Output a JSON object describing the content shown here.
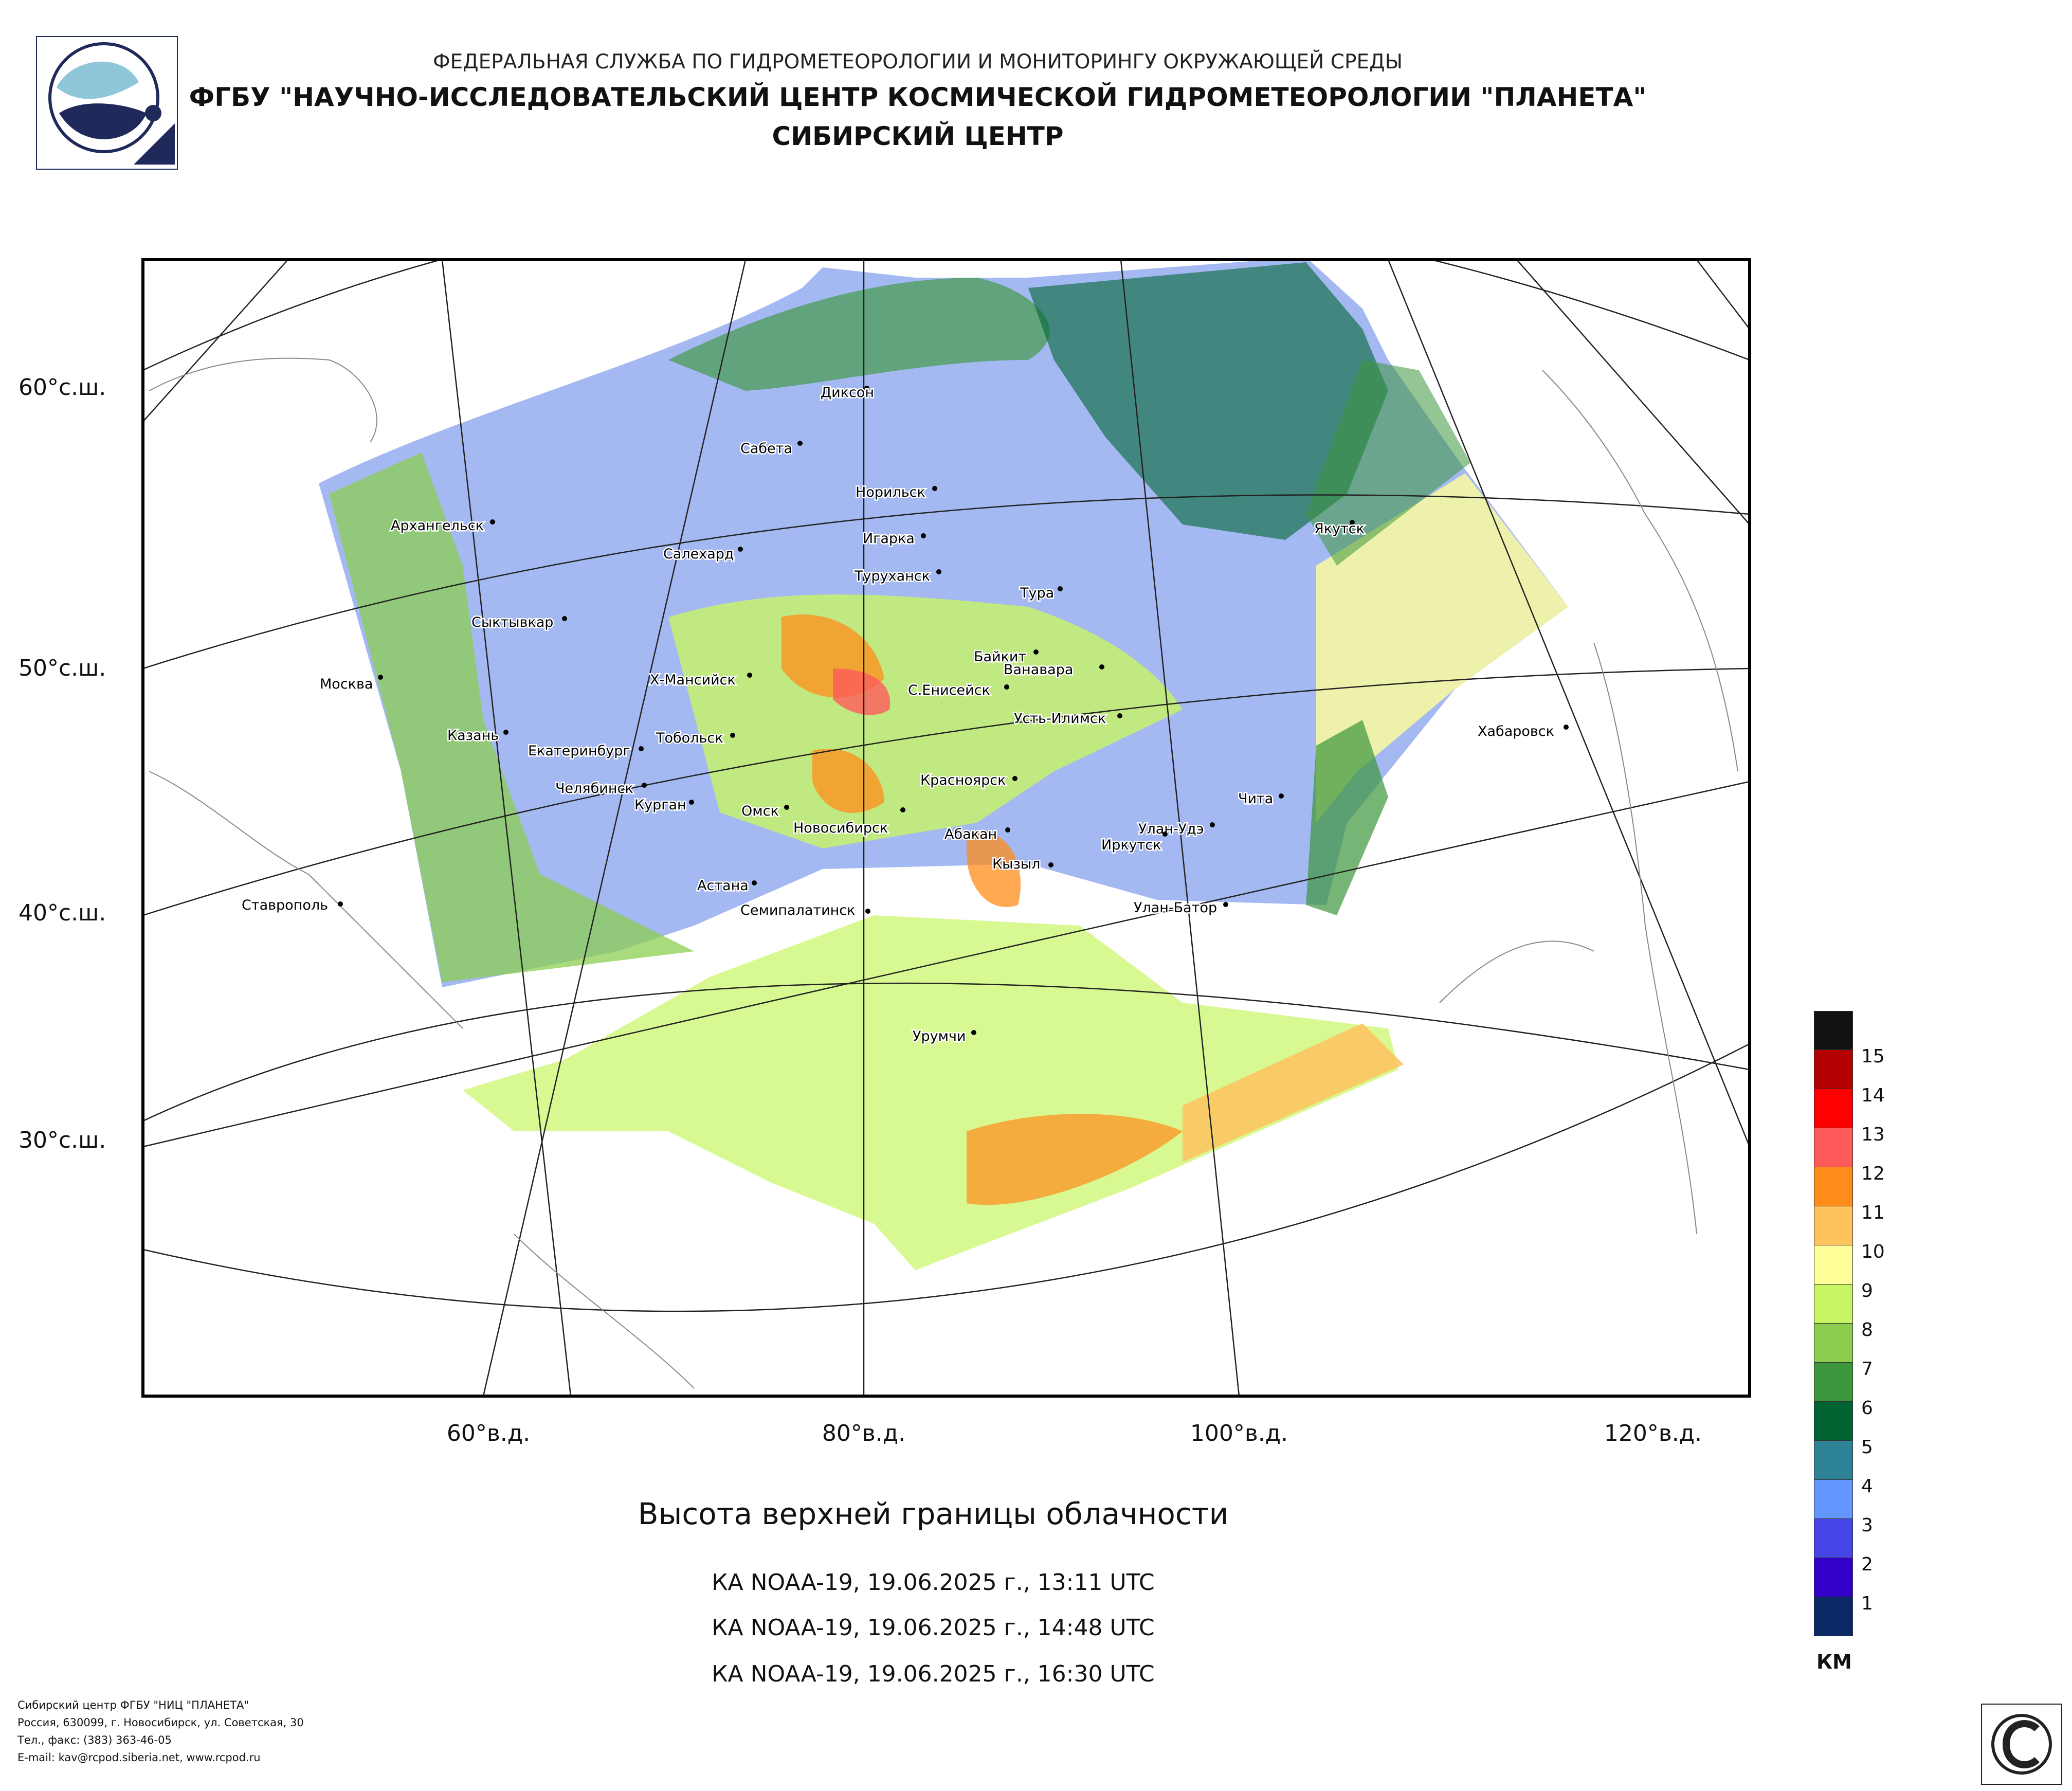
{
  "header": {
    "line1": "ФЕДЕРАЛЬНАЯ СЛУЖБА ПО ГИДРОМЕТЕОРОЛОГИИ И МОНИТОРИНГУ ОКРУЖАЮЩЕЙ СРЕДЫ",
    "line2": "ФГБУ \"НАУЧНО-ИССЛЕДОВАТЕЛЬСКИЙ ЦЕНТР КОСМИЧЕСКОЙ ГИДРОМЕТЕОРОЛОГИИ \"ПЛАНЕТА\"",
    "line3": "СИБИРСКИЙ ЦЕНТР"
  },
  "map": {
    "lat_labels": [
      "60°с.ш.",
      "50°с.ш.",
      "40°с.ш.",
      "30°с.ш."
    ],
    "lon_labels": [
      "60°в.д.",
      "80°в.д.",
      "100°в.д.",
      "120°в.д."
    ],
    "cities": [
      "Диксон",
      "Сабета",
      "Норильск",
      "Игарка",
      "Архангельск",
      "Салехард",
      "Туруханск",
      "Тура",
      "Якутск",
      "Сыктывкар",
      "Байкит",
      "Ванавара",
      "Москва",
      "Х-Мансийск",
      "С.Енисейск",
      "Усть-Илимск",
      "Хабаровск",
      "Казань",
      "Тобольск",
      "Екатеринбург",
      "Красноярск",
      "Челябинск",
      "Курган",
      "Чита",
      "Омск",
      "Новосибирск",
      "Улан-Удэ",
      "Абакан",
      "Иркутск",
      "Кызыл",
      "Астана",
      "Ставрополь",
      "Семипалатинск",
      "Улан-Батор",
      "Урумчи"
    ]
  },
  "title": "Высота верхней границы облачности",
  "passes": [
    "КА NOAA-19, 19.06.2025 г., 13:11 UTC",
    "КА NOAA-19, 19.06.2025 г., 14:48 UTC",
    "КА NOAA-19, 19.06.2025 г., 16:30 UTC"
  ],
  "legend": {
    "labels": [
      "15",
      "14",
      "13",
      "12",
      "11",
      "10",
      "9",
      "8",
      "7",
      "6",
      "5",
      "4",
      "3",
      "2",
      "1"
    ],
    "colors": [
      "#111111",
      "#b30000",
      "#ff0000",
      "#ff5a5a",
      "#ff8c1a",
      "#ffc35e",
      "#ffff99",
      "#c8f564",
      "#8ccd50",
      "#3c963c",
      "#006432",
      "#2d8296",
      "#6496ff",
      "#4646e6",
      "#3200c8",
      "#0a2864"
    ],
    "unit": "КМ"
  },
  "footer": [
    "Сибирский центр ФГБУ \"НИЦ \"ПЛАНЕТА\"",
    "Россия, 630099, г. Новосибирск, ул. Советская, 30",
    "Тел., факс: (383) 363-46-05",
    "E-mail: kav@rcpod.siberia.net, www.rcpod.ru"
  ]
}
